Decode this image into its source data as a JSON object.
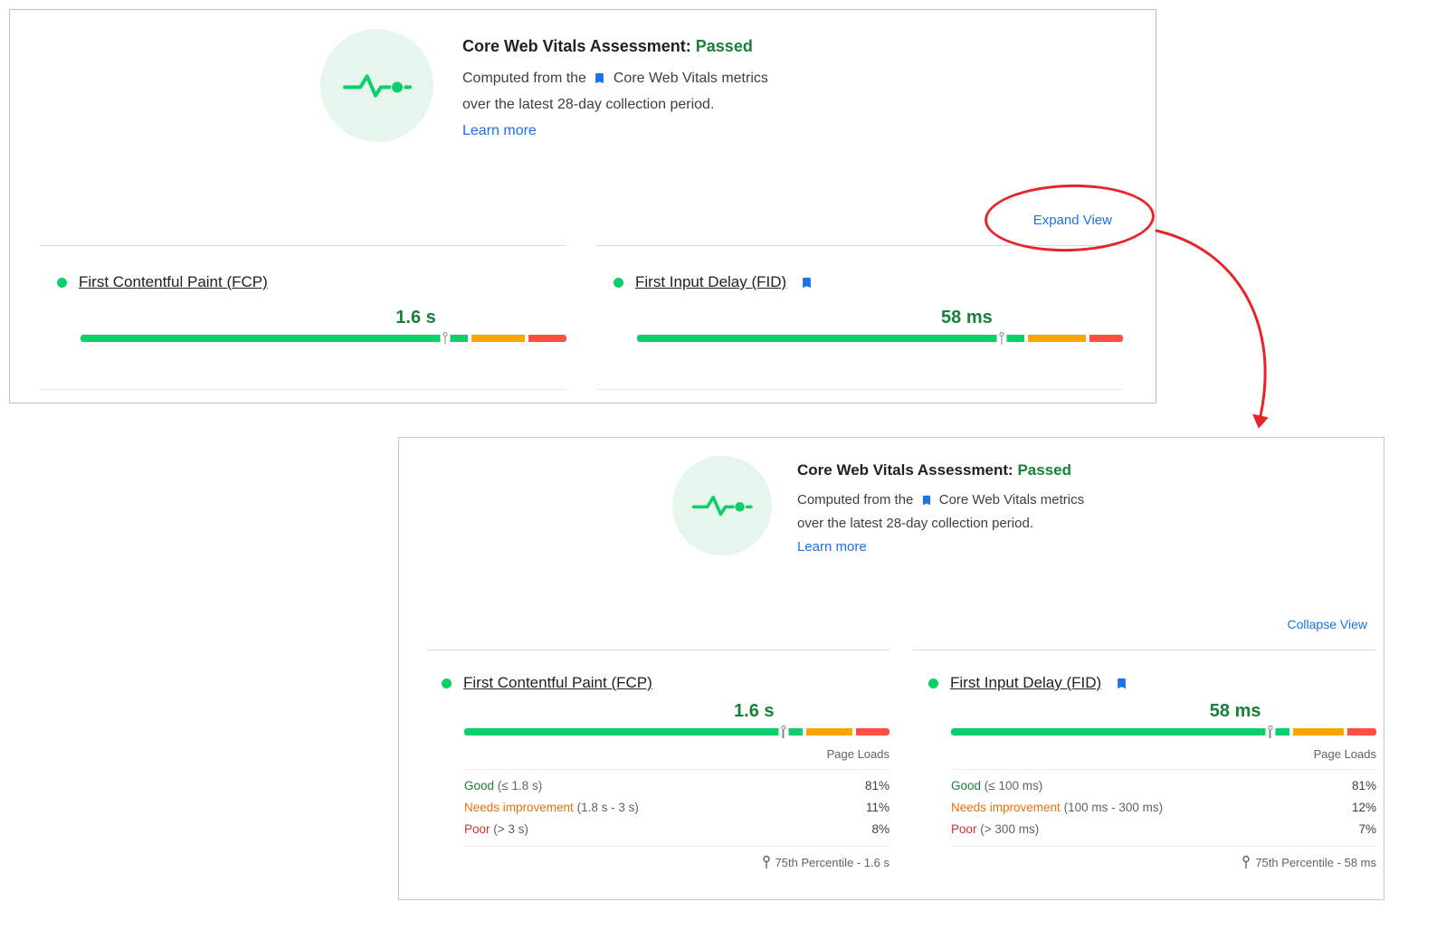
{
  "assessment": {
    "title": "Core Web Vitals Assessment:",
    "status": "Passed",
    "description_prefix": "Computed from the",
    "description_link_text": "Core Web Vitals metrics",
    "description_line2": "over the latest 28-day collection period.",
    "learn_more_label": "Learn more"
  },
  "collapsed_panel": {
    "expand_view_label": "Expand View"
  },
  "expanded_panel": {
    "collapse_view_label": "Collapse View",
    "page_loads_label": "Page Loads"
  },
  "metrics": [
    {
      "name": "First Contentful Paint (FCP)",
      "value": "1.6 s",
      "distribution": {
        "good": 81,
        "needs_improvement": 11,
        "poor": 8
      },
      "marker_percent": 75,
      "rows": [
        {
          "label": "Good",
          "range": "(≤ 1.8 s)",
          "percent": "81%"
        },
        {
          "label": "Needs improvement",
          "range": "(1.8 s - 3 s)",
          "percent": "11%"
        },
        {
          "label": "Poor",
          "range": "(> 3 s)",
          "percent": "8%"
        }
      ],
      "percentile": "75th Percentile - 1.6 s"
    },
    {
      "name": "First Input Delay (FID)",
      "value": "58 ms",
      "distribution": {
        "good": 81,
        "needs_improvement": 12,
        "poor": 7
      },
      "marker_percent": 75,
      "rows": [
        {
          "label": "Good",
          "range": "(≤ 100 ms)",
          "percent": "81%"
        },
        {
          "label": "Needs improvement",
          "range": "(100 ms - 300 ms)",
          "percent": "12%"
        },
        {
          "label": "Poor",
          "range": "(> 300 ms)",
          "percent": "7%"
        }
      ],
      "percentile": "75th Percentile - 58 ms"
    }
  ],
  "colors": {
    "good": "#0cce6b",
    "needs_improvement": "#ffa400",
    "poor": "#ff4e42",
    "passed_text": "#188038",
    "link": "#1a73e8",
    "annotation_red": "#e8242b"
  }
}
